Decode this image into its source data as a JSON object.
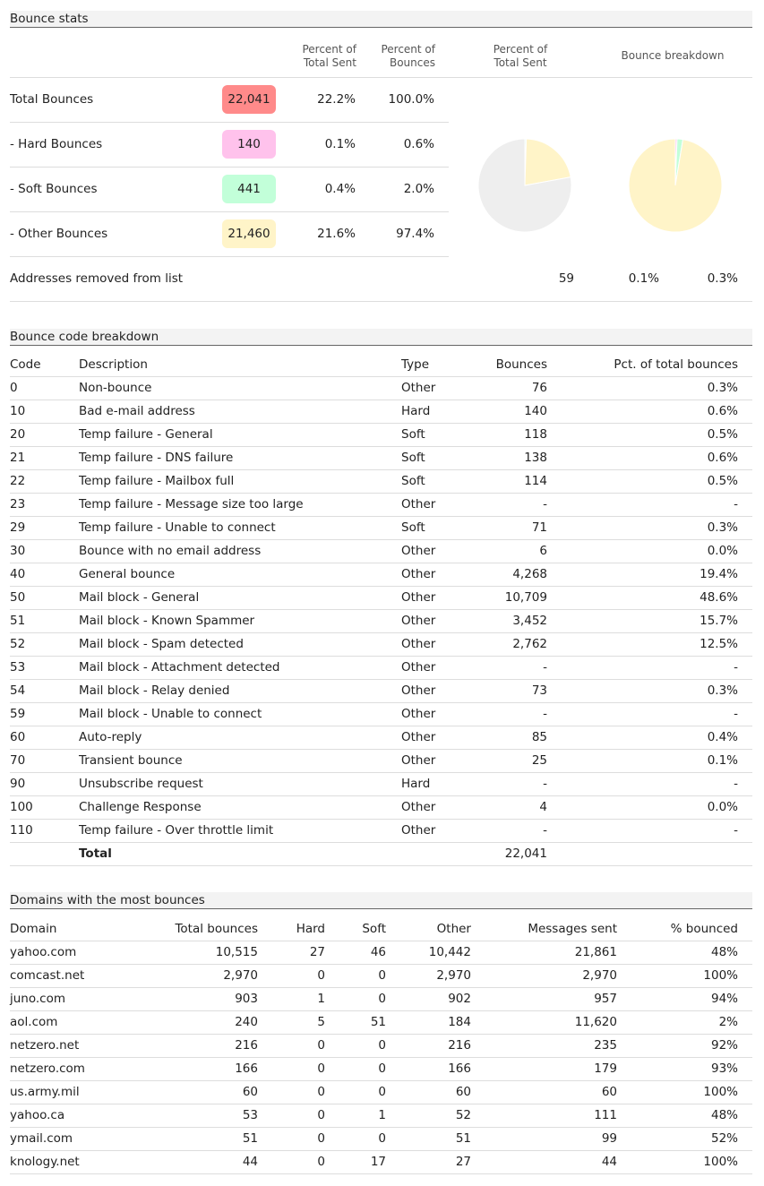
{
  "colors": {
    "total": "#ff8a8a",
    "hard": "#ffc2ec",
    "soft": "#c2ffd9",
    "other": "#fff4c8",
    "rest": "#eeeeee"
  },
  "bounce_stats": {
    "title": "Bounce stats",
    "headers": {
      "pct_sent": "Percent of Total Sent",
      "pct_bounces": "Percent of Bounces",
      "pie1": "Percent of Total Sent",
      "pie2": "Bounce breakdown"
    },
    "rows": [
      {
        "label": "Total Bounces",
        "value": "22,041",
        "pct_sent": "22.2%",
        "pct_bounces": "100.0%",
        "badge": "total"
      },
      {
        "label": "- Hard Bounces",
        "value": "140",
        "pct_sent": "0.1%",
        "pct_bounces": "0.6%",
        "badge": "hard"
      },
      {
        "label": "- Soft Bounces",
        "value": "441",
        "pct_sent": "0.4%",
        "pct_bounces": "2.0%",
        "badge": "soft"
      },
      {
        "label": "- Other Bounces",
        "value": "21,460",
        "pct_sent": "21.6%",
        "pct_bounces": "97.4%",
        "badge": "other"
      },
      {
        "label": "Addresses removed from list",
        "value": "59",
        "pct_sent": "0.1%",
        "pct_bounces": "0.3%",
        "badge": ""
      }
    ]
  },
  "chart_data": [
    {
      "type": "pie",
      "title": "Percent of Total Sent",
      "categories": [
        "Hard",
        "Soft",
        "Other",
        "Not bounced"
      ],
      "values": [
        0.1,
        0.4,
        21.6,
        77.8
      ]
    },
    {
      "type": "pie",
      "title": "Bounce breakdown",
      "categories": [
        "Hard",
        "Soft",
        "Other"
      ],
      "values": [
        0.6,
        2.0,
        97.4
      ]
    }
  ],
  "code_breakdown": {
    "title": "Bounce code breakdown",
    "headers": [
      "Code",
      "Description",
      "Type",
      "Bounces",
      "Pct. of total bounces"
    ],
    "rows": [
      [
        "0",
        "Non-bounce",
        "Other",
        "76",
        "0.3%"
      ],
      [
        "10",
        "Bad e-mail address",
        "Hard",
        "140",
        "0.6%"
      ],
      [
        "20",
        "Temp failure - General",
        "Soft",
        "118",
        "0.5%"
      ],
      [
        "21",
        "Temp failure - DNS failure",
        "Soft",
        "138",
        "0.6%"
      ],
      [
        "22",
        "Temp failure - Mailbox full",
        "Soft",
        "114",
        "0.5%"
      ],
      [
        "23",
        "Temp failure - Message size too large",
        "Other",
        "-",
        "-"
      ],
      [
        "29",
        "Temp failure - Unable to connect",
        "Soft",
        "71",
        "0.3%"
      ],
      [
        "30",
        "Bounce with no email address",
        "Other",
        "6",
        "0.0%"
      ],
      [
        "40",
        "General bounce",
        "Other",
        "4,268",
        "19.4%"
      ],
      [
        "50",
        "Mail block - General",
        "Other",
        "10,709",
        "48.6%"
      ],
      [
        "51",
        "Mail block - Known Spammer",
        "Other",
        "3,452",
        "15.7%"
      ],
      [
        "52",
        "Mail block - Spam detected",
        "Other",
        "2,762",
        "12.5%"
      ],
      [
        "53",
        "Mail block - Attachment detected",
        "Other",
        "-",
        "-"
      ],
      [
        "54",
        "Mail block - Relay denied",
        "Other",
        "73",
        "0.3%"
      ],
      [
        "59",
        "Mail block - Unable to connect",
        "Other",
        "-",
        "-"
      ],
      [
        "60",
        "Auto-reply",
        "Other",
        "85",
        "0.4%"
      ],
      [
        "70",
        "Transient bounce",
        "Other",
        "25",
        "0.1%"
      ],
      [
        "90",
        "Unsubscribe request",
        "Hard",
        "-",
        "-"
      ],
      [
        "100",
        "Challenge Response",
        "Other",
        "4",
        "0.0%"
      ],
      [
        "110",
        "Temp failure - Over throttle limit",
        "Other",
        "-",
        "-"
      ]
    ],
    "total_label": "Total",
    "total_value": "22,041"
  },
  "domains": {
    "title": "Domains with the most bounces",
    "headers": [
      "Domain",
      "Total bounces",
      "Hard",
      "Soft",
      "Other",
      "Messages sent",
      "% bounced"
    ],
    "rows": [
      [
        "yahoo.com",
        "10,515",
        "27",
        "46",
        "10,442",
        "21,861",
        "48%"
      ],
      [
        "comcast.net",
        "2,970",
        "0",
        "0",
        "2,970",
        "2,970",
        "100%"
      ],
      [
        "juno.com",
        "903",
        "1",
        "0",
        "902",
        "957",
        "94%"
      ],
      [
        "aol.com",
        "240",
        "5",
        "51",
        "184",
        "11,620",
        "2%"
      ],
      [
        "netzero.net",
        "216",
        "0",
        "0",
        "216",
        "235",
        "92%"
      ],
      [
        "netzero.com",
        "166",
        "0",
        "0",
        "166",
        "179",
        "93%"
      ],
      [
        "us.army.mil",
        "60",
        "0",
        "0",
        "60",
        "60",
        "100%"
      ],
      [
        "yahoo.ca",
        "53",
        "0",
        "1",
        "52",
        "111",
        "48%"
      ],
      [
        "ymail.com",
        "51",
        "0",
        "0",
        "51",
        "99",
        "52%"
      ],
      [
        "knology.net",
        "44",
        "0",
        "17",
        "27",
        "44",
        "100%"
      ]
    ]
  }
}
